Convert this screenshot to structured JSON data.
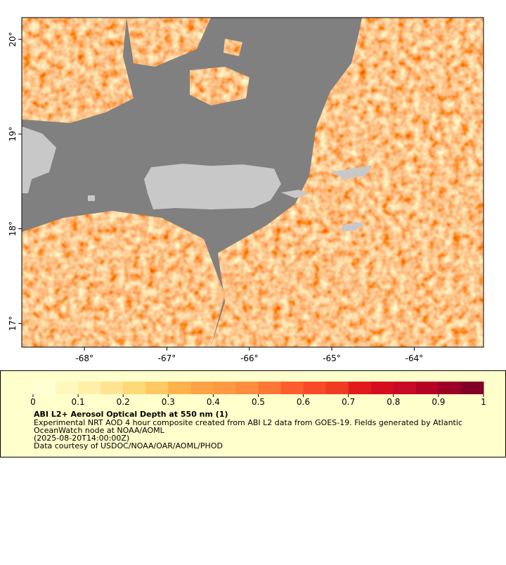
{
  "map": {
    "xlim": [
      -68.76,
      -63.16
    ],
    "ylim": [
      16.75,
      20.23
    ],
    "xticks": [
      {
        "value": -68,
        "label": "-68°"
      },
      {
        "value": -67,
        "label": "-67°"
      },
      {
        "value": -66,
        "label": "-66°"
      },
      {
        "value": -65,
        "label": "-65°"
      },
      {
        "value": -64,
        "label": "-64°"
      }
    ],
    "yticks": [
      {
        "value": 17,
        "label": "17°"
      },
      {
        "value": 18,
        "label": "18°"
      },
      {
        "value": 19,
        "label": "19°"
      },
      {
        "value": 20,
        "label": "20°"
      }
    ]
  },
  "colorbar": {
    "range": [
      0,
      1
    ],
    "ticks": [
      0,
      0.1,
      0.2,
      0.3,
      0.4,
      0.5,
      0.6,
      0.7,
      0.8,
      0.9,
      1
    ],
    "colors": [
      "#ffffd4",
      "#fff7bc",
      "#fff0a8",
      "#fee391",
      "#fed976",
      "#fec863",
      "#feb24c",
      "#fea345",
      "#fd9a41",
      "#fd8d3c",
      "#fc7634",
      "#fc5d2c",
      "#f84a26",
      "#ef3b21",
      "#e31a1c",
      "#d50e1f",
      "#c70a23",
      "#b40225",
      "#9d0026",
      "#800026"
    ]
  },
  "caption": {
    "title": "ABI L2+ Aerosol Optical Depth at 550 nm (1)",
    "lines": [
      "Experimental NRT AOD 4 hour composite created from ABI L2 data from GOES-19. Fields generated by Atlantic",
      "OceanWatch node at NOAA/AOML",
      "(2025-08-20T14:00:00Z)",
      "Data courtesy of USDOC/NOAA/OAR/AOML/PHOD"
    ]
  }
}
